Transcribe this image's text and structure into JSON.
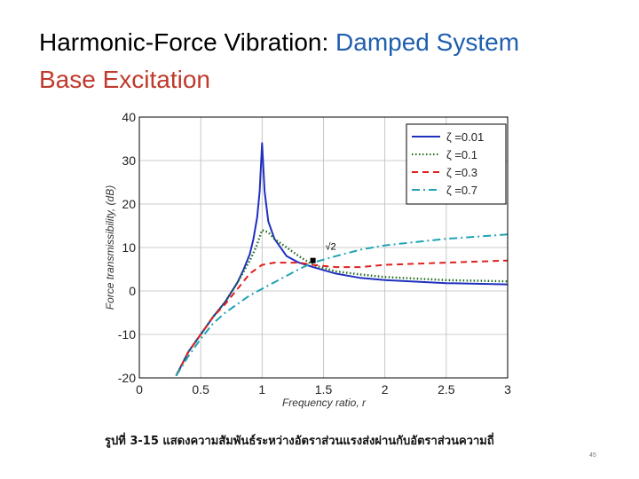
{
  "slide": {
    "title_part1": "Harmonic-Force Vibration: ",
    "title_part2": "Damped System",
    "subtitle": "Base Excitation",
    "caption": "รูปที่ 3-15 แสดงความสัมพันธ์ระหว่างอัตราส่วนแรงส่งผ่านกับอัตราส่วนความถี่",
    "page_number": "45"
  },
  "colors": {
    "title_blue": "#1f5fb0",
    "subtitle_red": "#c0392b",
    "zeta_001": "#1f2fbf",
    "zeta_01": "#1a6b1a",
    "zeta_03": "#e02020",
    "zeta_07": "#1fa3b5"
  },
  "chart_data": {
    "type": "line",
    "title": "",
    "xlabel": "Frequency ratio, r",
    "ylabel": "Force transmissibility, (dB)",
    "xlim": [
      0,
      3
    ],
    "ylim": [
      -20,
      40
    ],
    "xticks": [
      "0",
      "0.5",
      "1",
      "1.5",
      "2",
      "2.5",
      "3"
    ],
    "yticks": [
      "-20",
      "-10",
      "0",
      "10",
      "20",
      "30",
      "40"
    ],
    "grid": true,
    "legend_position": "top-right",
    "annotation": "√2",
    "annotation_point": [
      1.414,
      7
    ],
    "series": [
      {
        "name": "ζ =0.01",
        "style": "solid",
        "color_key": "zeta_001",
        "x": [
          0.3,
          0.4,
          0.5,
          0.6,
          0.7,
          0.8,
          0.85,
          0.9,
          0.93,
          0.96,
          0.98,
          1.0,
          1.02,
          1.05,
          1.1,
          1.2,
          1.3,
          1.414,
          1.6,
          1.8,
          2.0,
          2.5,
          3.0
        ],
        "y": [
          -19.5,
          -14,
          -10,
          -6,
          -2.5,
          2,
          5,
          8.5,
          12,
          17,
          23,
          34,
          23,
          16,
          12,
          8,
          6.5,
          5.5,
          4,
          3,
          2.5,
          1.8,
          1.5
        ]
      },
      {
        "name": "ζ =0.1",
        "style": "dotted",
        "color_key": "zeta_01",
        "x": [
          0.3,
          0.4,
          0.5,
          0.6,
          0.7,
          0.8,
          0.9,
          0.95,
          1.0,
          1.05,
          1.1,
          1.2,
          1.3,
          1.414,
          1.6,
          1.8,
          2.0,
          2.5,
          3.0
        ],
        "y": [
          -19.5,
          -14,
          -10,
          -6,
          -2.5,
          2,
          7,
          10,
          14,
          13.5,
          12,
          10,
          8,
          6,
          4.5,
          3.8,
          3.2,
          2.5,
          2.2
        ]
      },
      {
        "name": "ζ =0.3",
        "style": "dashed",
        "color_key": "zeta_03",
        "x": [
          0.3,
          0.4,
          0.5,
          0.6,
          0.7,
          0.8,
          0.9,
          1.0,
          1.1,
          1.2,
          1.3,
          1.414,
          1.6,
          1.8,
          2.0,
          2.5,
          3.0
        ],
        "y": [
          -19.5,
          -14,
          -10,
          -6,
          -3,
          0.5,
          4,
          6,
          6.5,
          6.5,
          6.5,
          6,
          5.5,
          5.5,
          6,
          6.5,
          7
        ]
      },
      {
        "name": "ζ =0.7",
        "style": "dash-dot",
        "color_key": "zeta_07",
        "x": [
          0.3,
          0.4,
          0.5,
          0.6,
          0.7,
          0.8,
          0.9,
          1.0,
          1.1,
          1.2,
          1.3,
          1.414,
          1.6,
          1.8,
          2.0,
          2.5,
          3.0
        ],
        "y": [
          -19.5,
          -15,
          -11,
          -7.5,
          -5,
          -3,
          -1,
          0.5,
          2,
          3.5,
          5,
          6.5,
          8,
          9.5,
          10.5,
          12,
          13
        ]
      }
    ]
  }
}
